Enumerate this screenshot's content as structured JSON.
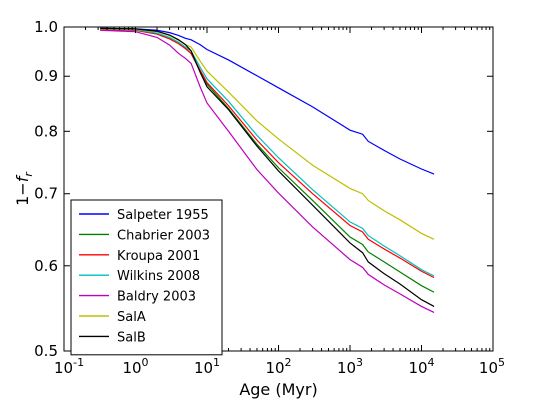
{
  "chart_data": {
    "type": "line",
    "title": "",
    "xlabel": "Age (Myr)",
    "ylabel": "1−f_r",
    "ylabel_parts": {
      "pre": "1−",
      "f": "f",
      "sub": "r"
    },
    "xscale": "log",
    "yscale": "log",
    "xlim": [
      0.1,
      100000
    ],
    "ylim": [
      0.5,
      1.0
    ],
    "grid": false,
    "legend_position": "lower-left",
    "x_ticks": [
      {
        "value": 0.1,
        "base": "10",
        "exp": "-1"
      },
      {
        "value": 1,
        "base": "10",
        "exp": "0"
      },
      {
        "value": 10,
        "base": "10",
        "exp": "1"
      },
      {
        "value": 100,
        "base": "10",
        "exp": "2"
      },
      {
        "value": 1000,
        "base": "10",
        "exp": "3"
      },
      {
        "value": 10000,
        "base": "10",
        "exp": "4"
      },
      {
        "value": 100000,
        "base": "10",
        "exp": "5"
      }
    ],
    "y_ticks": [
      {
        "value": 0.5,
        "label": "0.5"
      },
      {
        "value": 0.6,
        "label": "0.6"
      },
      {
        "value": 0.7,
        "label": "0.7"
      },
      {
        "value": 0.8,
        "label": "0.8"
      },
      {
        "value": 0.9,
        "label": "0.9"
      },
      {
        "value": 1.0,
        "label": "1.0"
      }
    ],
    "series": [
      {
        "name": "Salpeter 1955",
        "color": "#0000ff",
        "x": [
          0.32,
          1,
          2,
          3,
          4,
          5,
          6,
          8,
          10,
          20,
          50,
          100,
          300,
          1000,
          1500,
          1800,
          3000,
          5000,
          10000,
          15000
        ],
        "y": [
          0.997,
          0.996,
          0.993,
          0.988,
          0.982,
          0.976,
          0.973,
          0.963,
          0.953,
          0.932,
          0.901,
          0.878,
          0.843,
          0.802,
          0.795,
          0.783,
          0.768,
          0.754,
          0.738,
          0.73
        ]
      },
      {
        "name": "Chabrier 2003",
        "color": "#008000",
        "x": [
          0.32,
          1,
          2,
          3,
          4,
          5,
          6,
          8,
          10,
          20,
          50,
          100,
          300,
          1000,
          1500,
          1800,
          3000,
          5000,
          10000,
          15000
        ],
        "y": [
          0.995,
          0.993,
          0.985,
          0.975,
          0.965,
          0.955,
          0.945,
          0.91,
          0.885,
          0.84,
          0.778,
          0.74,
          0.69,
          0.638,
          0.628,
          0.618,
          0.605,
          0.592,
          0.575,
          0.567
        ]
      },
      {
        "name": "Kroupa 2001",
        "color": "#ff0000",
        "x": [
          0.32,
          1,
          2,
          3,
          4,
          5,
          6,
          8,
          10,
          20,
          50,
          100,
          300,
          1000,
          1500,
          1800,
          3000,
          5000,
          10000,
          15000
        ],
        "y": [
          0.995,
          0.993,
          0.985,
          0.975,
          0.965,
          0.955,
          0.945,
          0.912,
          0.888,
          0.845,
          0.785,
          0.748,
          0.7,
          0.654,
          0.645,
          0.635,
          0.622,
          0.61,
          0.593,
          0.585
        ]
      },
      {
        "name": "Wilkins 2008",
        "color": "#00bfbf",
        "x": [
          0.32,
          1,
          2,
          3,
          4,
          5,
          6,
          8,
          10,
          20,
          50,
          100,
          300,
          1000,
          1500,
          1800,
          3000,
          5000,
          10000,
          15000
        ],
        "y": [
          0.996,
          0.994,
          0.987,
          0.978,
          0.968,
          0.958,
          0.95,
          0.918,
          0.895,
          0.853,
          0.793,
          0.756,
          0.706,
          0.659,
          0.65,
          0.64,
          0.626,
          0.613,
          0.595,
          0.587
        ]
      },
      {
        "name": "Baldry 2003",
        "color": "#bf00bf",
        "x": [
          0.32,
          1,
          2,
          3,
          4,
          5,
          6,
          8,
          10,
          20,
          50,
          100,
          300,
          1000,
          1500,
          1800,
          3000,
          5000,
          10000,
          15000
        ],
        "y": [
          0.993,
          0.99,
          0.978,
          0.962,
          0.945,
          0.935,
          0.925,
          0.88,
          0.85,
          0.8,
          0.737,
          0.701,
          0.652,
          0.608,
          0.598,
          0.589,
          0.576,
          0.565,
          0.55,
          0.543
        ]
      },
      {
        "name": "SalA",
        "color": "#bfbf00",
        "x": [
          0.32,
          1,
          2,
          3,
          4,
          5,
          6,
          8,
          10,
          20,
          50,
          100,
          300,
          1000,
          1500,
          1800,
          3000,
          5000,
          10000,
          15000
        ],
        "y": [
          0.996,
          0.995,
          0.99,
          0.982,
          0.972,
          0.963,
          0.958,
          0.93,
          0.91,
          0.87,
          0.818,
          0.787,
          0.744,
          0.708,
          0.7,
          0.69,
          0.675,
          0.662,
          0.643,
          0.635
        ]
      },
      {
        "name": "SalB",
        "color": "#000000",
        "x": [
          0.32,
          1,
          2,
          3,
          4,
          5,
          6,
          8,
          10,
          20,
          50,
          100,
          300,
          1000,
          1500,
          1800,
          3000,
          5000,
          10000,
          15000
        ],
        "y": [
          0.997,
          0.996,
          0.991,
          0.983,
          0.973,
          0.963,
          0.95,
          0.908,
          0.88,
          0.838,
          0.775,
          0.735,
          0.683,
          0.63,
          0.617,
          0.605,
          0.59,
          0.577,
          0.558,
          0.55
        ]
      }
    ]
  }
}
